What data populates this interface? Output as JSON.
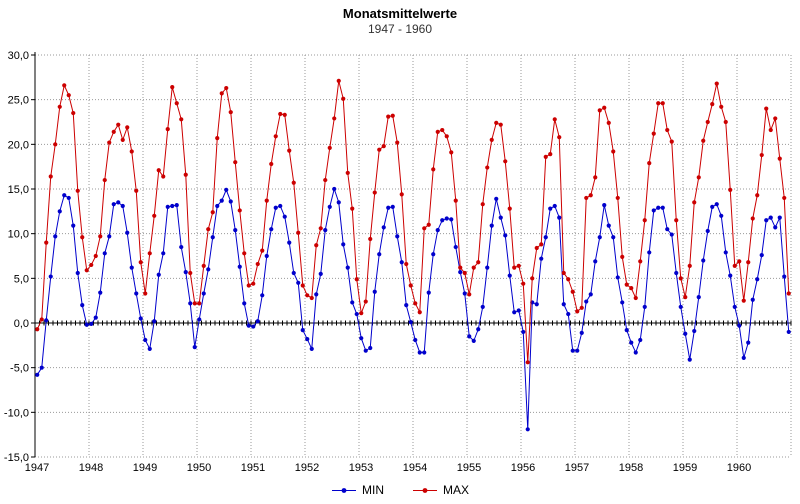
{
  "chart_data": {
    "type": "line",
    "title": "Monatsmittelwerte",
    "subtitle": "1947 - 1960",
    "xlabel": "",
    "ylabel": "",
    "ylim": [
      -15,
      30
    ],
    "y_step": 5,
    "y_tick_labels": [
      "30,0",
      "25,0",
      "20,0",
      "15,0",
      "10,0",
      "5,0",
      "0,0",
      "-5,0",
      "-10,0",
      "-15,0"
    ],
    "x_tick_labels": [
      "1947",
      "1948",
      "1949",
      "1950",
      "1951",
      "1952",
      "1953",
      "1954",
      "1955",
      "1956",
      "1957",
      "1958",
      "1959",
      "1960"
    ],
    "months_per_year": 12,
    "grid": "dotted",
    "legend_position": "bottom-center",
    "colors": {
      "background": "#ffffff",
      "axis": "#000000",
      "grid": "#999999",
      "min_series": "#0000cc",
      "max_series": "#cc0000"
    },
    "series": [
      {
        "name": "MIN",
        "color": "#0000cc",
        "values": [
          -5.8,
          -5.0,
          0.3,
          5.2,
          9.7,
          12.5,
          14.3,
          14.0,
          10.9,
          5.6,
          2.0,
          -0.2,
          -0.1,
          0.6,
          3.4,
          7.8,
          9.7,
          13.3,
          13.5,
          13.1,
          10.1,
          6.2,
          3.3,
          0.5,
          -1.9,
          -2.9,
          0.2,
          5.4,
          7.8,
          13.0,
          13.1,
          13.2,
          8.5,
          5.7,
          2.2,
          -2.7,
          0.4,
          3.3,
          6.0,
          9.6,
          13.1,
          13.7,
          14.9,
          13.6,
          10.4,
          6.3,
          2.2,
          -0.3,
          -0.4,
          0.2,
          3.1,
          7.5,
          10.5,
          12.9,
          13.1,
          11.9,
          9.0,
          5.6,
          4.5,
          -0.8,
          -1.8,
          -2.9,
          3.2,
          5.5,
          10.4,
          13.0,
          15.0,
          13.5,
          8.8,
          6.2,
          2.3,
          1.0,
          -1.7,
          -3.1,
          -2.8,
          3.5,
          7.7,
          10.7,
          12.9,
          13.0,
          9.7,
          6.8,
          2.0,
          0.1,
          -1.9,
          -3.3,
          -3.3,
          3.4,
          7.7,
          10.4,
          11.5,
          11.7,
          11.6,
          8.5,
          5.7,
          3.3,
          -1.5,
          -2.0,
          -0.7,
          1.8,
          6.2,
          10.9,
          13.9,
          11.8,
          9.8,
          5.3,
          1.2,
          1.4,
          -1.0,
          -11.9,
          2.3,
          2.1,
          7.2,
          9.6,
          12.8,
          13.1,
          11.8,
          2.1,
          1.0,
          -3.1,
          -3.1,
          -1.1,
          2.4,
          3.2,
          6.9,
          9.6,
          13.2,
          10.9,
          9.6,
          5.1,
          2.3,
          -0.8,
          -2.2,
          -3.3,
          -1.9,
          1.8,
          7.9,
          12.6,
          12.9,
          12.9,
          10.5,
          9.9,
          5.6,
          1.8,
          -1.2,
          -4.1,
          -0.9,
          2.9,
          7.0,
          10.3,
          13.0,
          13.3,
          12.0,
          7.9,
          5.3,
          1.8,
          -0.3,
          -3.9,
          -2.2,
          2.6,
          4.9,
          7.6,
          11.5,
          11.8,
          10.7,
          11.8,
          5.2,
          -1.0
        ]
      },
      {
        "name": "MAX",
        "color": "#cc0000",
        "values": [
          -0.7,
          0.4,
          9.0,
          16.4,
          20.0,
          24.2,
          26.6,
          25.5,
          23.5,
          14.8,
          9.6,
          5.9,
          6.5,
          7.5,
          9.7,
          16.0,
          20.2,
          21.4,
          22.2,
          20.5,
          21.9,
          19.2,
          14.8,
          6.8,
          3.3,
          7.8,
          12.0,
          17.1,
          16.4,
          21.7,
          26.4,
          24.6,
          22.8,
          16.6,
          5.6,
          2.2,
          2.2,
          6.4,
          10.5,
          12.4,
          20.7,
          25.7,
          26.3,
          23.6,
          18.0,
          12.6,
          7.8,
          4.2,
          4.4,
          6.6,
          8.1,
          13.7,
          17.8,
          20.9,
          23.4,
          23.3,
          19.3,
          15.7,
          10.1,
          4.2,
          3.1,
          2.8,
          8.7,
          10.6,
          16.0,
          19.6,
          22.9,
          27.1,
          25.1,
          16.8,
          12.8,
          4.9,
          1.1,
          2.4,
          9.4,
          14.6,
          19.4,
          19.8,
          23.1,
          23.2,
          20.2,
          14.4,
          6.6,
          4.2,
          2.2,
          1.2,
          10.6,
          11.0,
          17.2,
          21.4,
          21.6,
          20.9,
          19.1,
          13.7,
          6.2,
          5.6,
          3.2,
          6.2,
          6.8,
          13.3,
          17.4,
          20.5,
          22.4,
          22.2,
          18.1,
          12.8,
          6.2,
          6.4,
          4.4,
          -4.4,
          5.0,
          8.4,
          8.8,
          18.6,
          18.9,
          22.8,
          20.8,
          5.6,
          4.9,
          3.5,
          1.3,
          1.7,
          14.0,
          14.3,
          16.3,
          23.8,
          24.1,
          22.4,
          19.2,
          14.0,
          7.4,
          4.3,
          3.9,
          2.8,
          6.9,
          11.5,
          17.9,
          21.2,
          24.6,
          24.6,
          21.6,
          20.3,
          11.5,
          5.0,
          2.9,
          6.4,
          13.5,
          16.3,
          20.4,
          22.5,
          24.5,
          26.8,
          24.2,
          22.5,
          14.9,
          6.4,
          6.9,
          2.5,
          6.8,
          11.7,
          14.3,
          18.8,
          24.0,
          21.6,
          22.9,
          18.4,
          14.0,
          3.3
        ]
      }
    ]
  }
}
